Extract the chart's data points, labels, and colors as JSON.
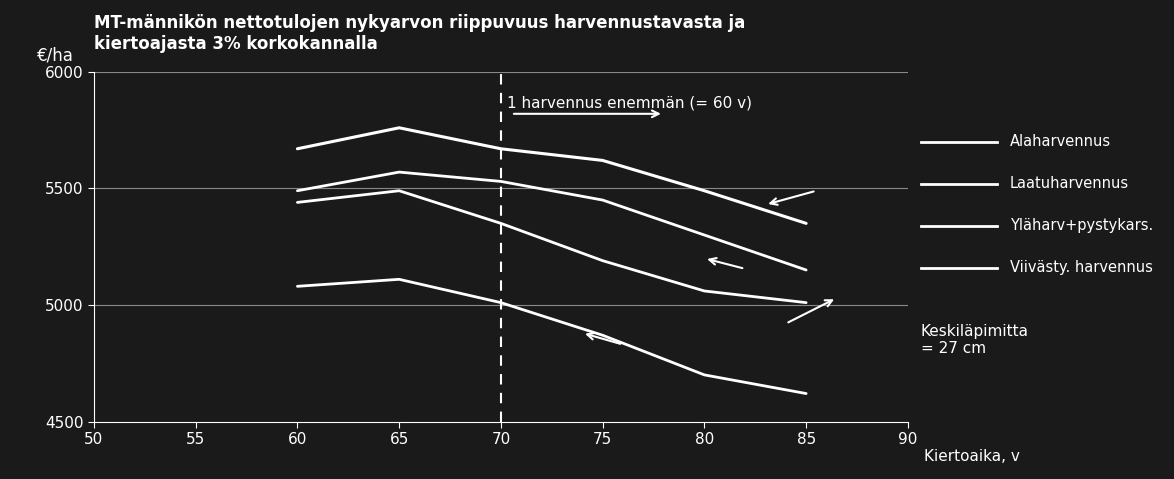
{
  "title": "MT-männikön nettotulojen nykyarvon riippuvuus harvennustavasta ja\nkiertoajasta 3% korkokannalla",
  "ylabel": "€/ha",
  "xlabel": "Kiertoaika, v",
  "bg_color": "#1a1a1a",
  "plot_bg_color": "#1a1a1a",
  "text_color": "#ffffff",
  "line_color": "#ffffff",
  "grid_color": "#888888",
  "xlim": [
    50,
    90
  ],
  "ylim": [
    4500,
    6000
  ],
  "xticks": [
    50,
    55,
    60,
    65,
    70,
    75,
    80,
    85,
    90
  ],
  "yticks": [
    4500,
    5000,
    5500,
    6000
  ],
  "dashed_x": 70,
  "annotation_arrow_text": "1 harvennus enemmän (= 60 v)",
  "legend_labels": [
    "Alaharvennus",
    "Laatuharvennus",
    "Yläharv+pystykars.",
    "Viivästy. harvennus"
  ],
  "note_text": "Keskiläpimitta\n= 27 cm",
  "series": {
    "alaharvennus": {
      "x": [
        60,
        65,
        70,
        75,
        80,
        85
      ],
      "y": [
        5670,
        5760,
        5670,
        5620,
        5490,
        5350
      ]
    },
    "laatuharvennus": {
      "x": [
        60,
        65,
        70,
        75,
        80,
        85
      ],
      "y": [
        5490,
        5570,
        5530,
        5450,
        5300,
        5150
      ]
    },
    "ylaharv_pystykars": {
      "x": [
        60,
        65,
        70,
        75,
        80,
        85
      ],
      "y": [
        5440,
        5490,
        5350,
        5190,
        5060,
        5010
      ]
    },
    "viivast_harvennus": {
      "x": [
        60,
        65,
        70,
        75,
        80,
        85
      ],
      "y": [
        5080,
        5110,
        5010,
        4870,
        4700,
        4620
      ]
    }
  }
}
